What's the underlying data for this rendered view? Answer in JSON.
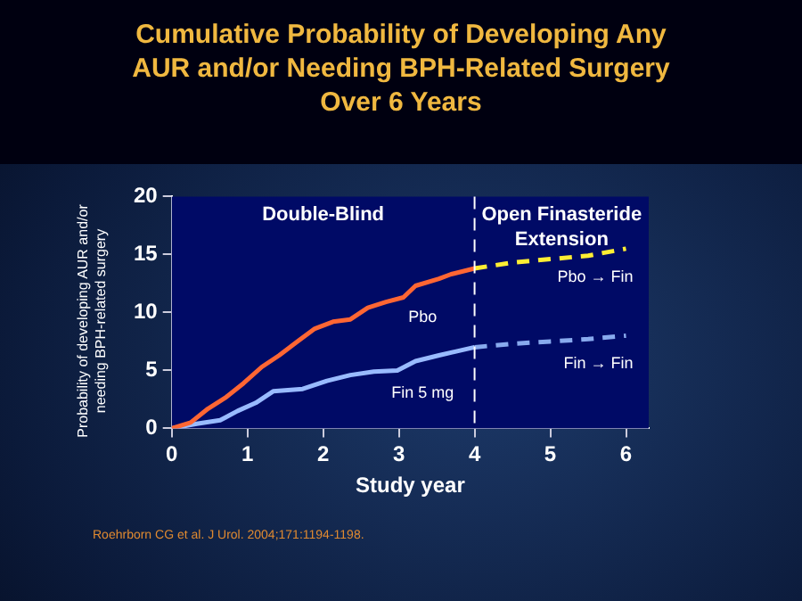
{
  "chart_data": {
    "type": "line",
    "title": "Cumulative Probability of Developing Any AUR and/or Needing BPH-Related Surgery Over 6 Years",
    "xlabel": "Study year",
    "ylabel": "Probability of developing AUR and/or needing BPH-related surgery",
    "xlim": [
      0,
      6.3
    ],
    "xticks": [
      0,
      1,
      2,
      3,
      4,
      5,
      6
    ],
    "ylim": [
      0,
      20
    ],
    "yticks": [
      0,
      5,
      10,
      15,
      20
    ],
    "grid": false,
    "legend": false,
    "marker": "none",
    "series": [
      {
        "name": "Pbo",
        "color": "#ff6633",
        "line_style": "solid",
        "x": [
          0,
          0.25,
          0.48,
          0.72,
          0.95,
          1.19,
          1.42,
          1.66,
          1.89,
          2.13,
          2.36,
          2.59,
          2.83,
          3.06,
          3.22,
          3.53,
          3.69,
          4.0
        ],
        "values": [
          0,
          0.5,
          1.7,
          2.7,
          3.9,
          5.3,
          6.3,
          7.5,
          8.6,
          9.2,
          9.4,
          10.4,
          10.9,
          11.3,
          12.3,
          12.9,
          13.3,
          13.8
        ]
      },
      {
        "name": "Fin 5 mg",
        "color": "#99bbff",
        "line_style": "solid",
        "x": [
          0,
          0.33,
          0.64,
          0.87,
          1.11,
          1.34,
          1.73,
          2.05,
          2.36,
          2.67,
          2.98,
          3.22,
          3.53,
          4.0
        ],
        "values": [
          0,
          0.4,
          0.7,
          1.5,
          2.2,
          3.2,
          3.4,
          4.1,
          4.6,
          4.9,
          5.0,
          5.8,
          6.3,
          7.0
        ]
      },
      {
        "name": "Pbo → Fin",
        "color": "#ffee33",
        "line_style": "dashed",
        "x": [
          4,
          4.5,
          5,
          5.5,
          6
        ],
        "values": [
          13.8,
          14.3,
          14.6,
          14.9,
          15.5
        ]
      },
      {
        "name": "Fin → Fin",
        "color": "#88aaee",
        "line_style": "dashed",
        "x": [
          4,
          4.5,
          5,
          5.5,
          6
        ],
        "values": [
          7.0,
          7.3,
          7.5,
          7.7,
          8.0
        ]
      }
    ],
    "ref_lines": [
      {
        "axis": "x",
        "value": 4,
        "color": "#ffffff",
        "line_style": "dashed"
      }
    ],
    "annotations": [
      "Double-Blind",
      "Open Finasteride Extension",
      "Roehrborn CG et al. J Urol. 2004;171:1194-1198."
    ]
  }
}
